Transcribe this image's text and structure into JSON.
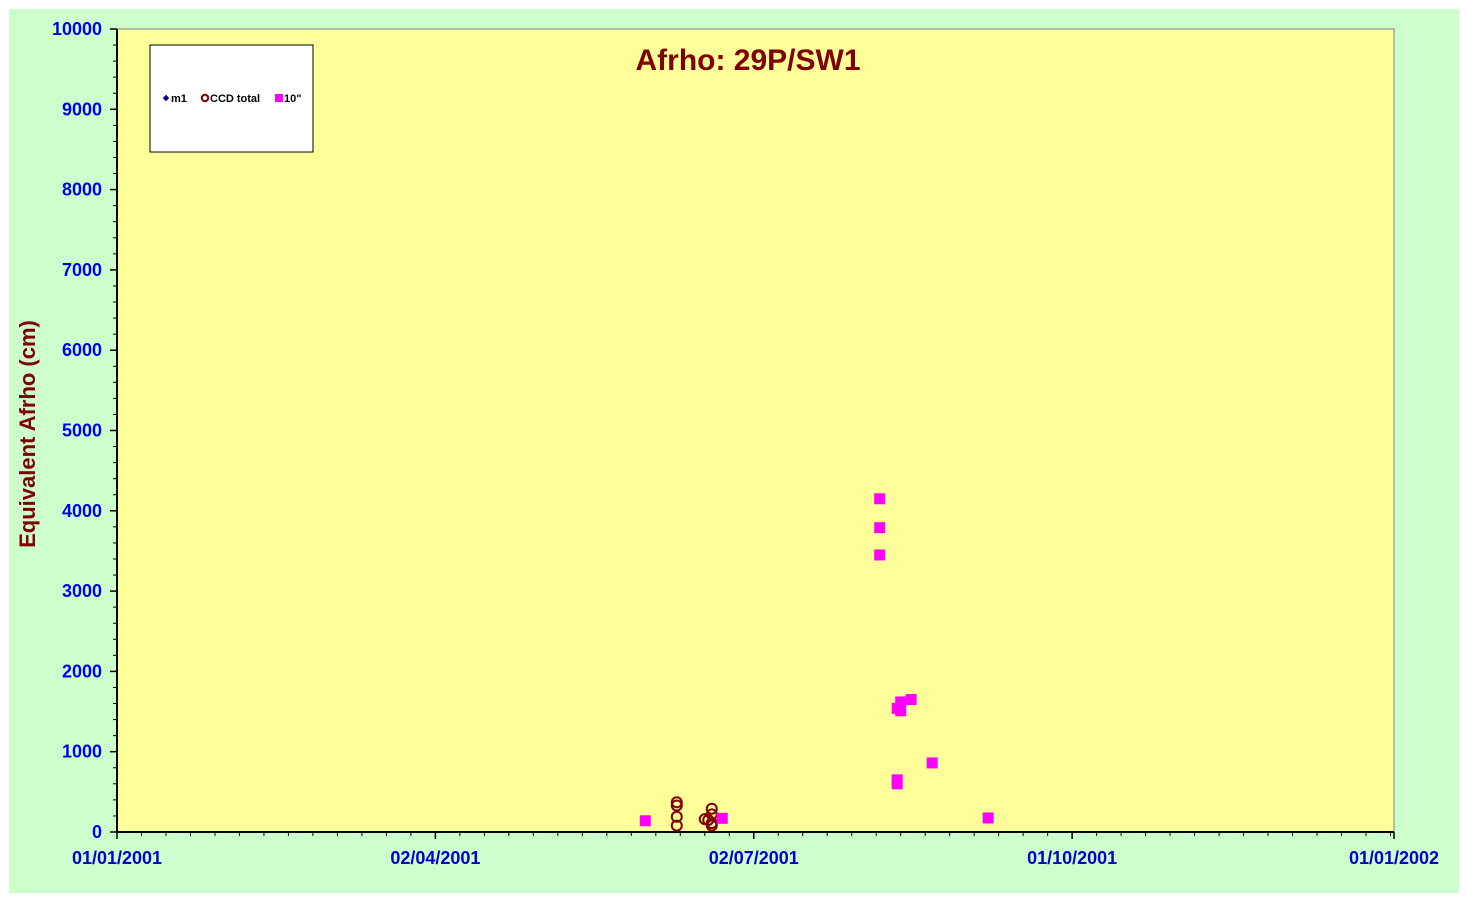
{
  "chart_data": {
    "type": "scatter",
    "title": "Afrho: 29P/SW1",
    "xlabel": "",
    "ylabel": "Equivalent Afrho (cm)",
    "x_axis_type": "date",
    "xlim": [
      "2001-01-01",
      "2002-01-01"
    ],
    "ylim": [
      0,
      10000
    ],
    "y_ticks": [
      0,
      1000,
      2000,
      3000,
      4000,
      5000,
      6000,
      7000,
      8000,
      9000,
      10000
    ],
    "y_tick_labels": [
      "0",
      "1000",
      "2000",
      "3000",
      "4000",
      "5000",
      "6000",
      "7000",
      "8000",
      "9000",
      "10000"
    ],
    "x_ticks": [
      "2001-01-01",
      "2001-04-02",
      "2001-07-02",
      "2001-10-01",
      "2002-01-01"
    ],
    "x_tick_labels": [
      "01/01/2001",
      "02/04/2001",
      "02/07/2001",
      "01/10/2001",
      "01/01/2002"
    ],
    "grid": false,
    "legend_position": "top-left",
    "plot_background": "#ffff99",
    "frame_background": "#ccffcc",
    "series": [
      {
        "name": "m1",
        "marker": "diamond",
        "color": "#000080",
        "points": []
      },
      {
        "name": "CCD total",
        "marker": "open-circle",
        "color": "#800000",
        "points": [
          {
            "x": "2001-06-10",
            "y": 370
          },
          {
            "x": "2001-06-10",
            "y": 330
          },
          {
            "x": "2001-06-10",
            "y": 190
          },
          {
            "x": "2001-06-10",
            "y": 80
          },
          {
            "x": "2001-06-18",
            "y": 160
          },
          {
            "x": "2001-06-19",
            "y": 150
          },
          {
            "x": "2001-06-20",
            "y": 290
          },
          {
            "x": "2001-06-20",
            "y": 220
          },
          {
            "x": "2001-06-20",
            "y": 110
          },
          {
            "x": "2001-06-20",
            "y": 80
          }
        ]
      },
      {
        "name": "10\"",
        "marker": "square",
        "color": "#ff00ff",
        "points": [
          {
            "x": "2001-06-01",
            "y": 140
          },
          {
            "x": "2001-06-23",
            "y": 170
          },
          {
            "x": "2001-08-07",
            "y": 4150
          },
          {
            "x": "2001-08-07",
            "y": 3790
          },
          {
            "x": "2001-08-07",
            "y": 3450
          },
          {
            "x": "2001-08-12",
            "y": 1540
          },
          {
            "x": "2001-08-12",
            "y": 650
          },
          {
            "x": "2001-08-12",
            "y": 600
          },
          {
            "x": "2001-08-13",
            "y": 1620
          },
          {
            "x": "2001-08-13",
            "y": 1510
          },
          {
            "x": "2001-08-16",
            "y": 1650
          },
          {
            "x": "2001-08-22",
            "y": 860
          },
          {
            "x": "2001-09-07",
            "y": 175
          }
        ]
      }
    ]
  }
}
